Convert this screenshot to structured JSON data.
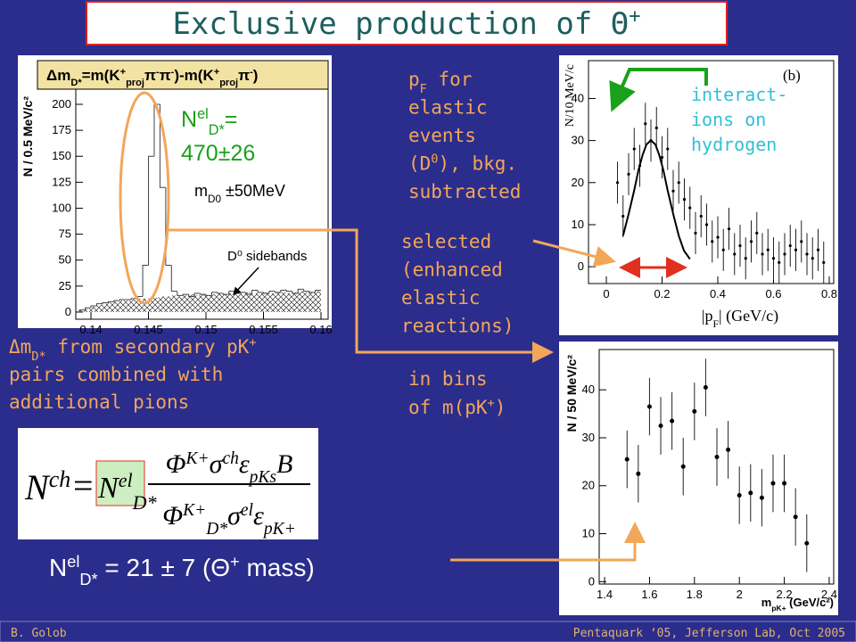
{
  "title": [
    [
      {
        "t": "Exclusive production of "
      },
      {
        "t": "Θ"
      },
      {
        "t": "+",
        "s": "sup"
      }
    ]
  ],
  "footer": {
    "author": "B. Golob",
    "event": "Pentaquark ‘05, Jefferson Lab, Oct 2005"
  },
  "annotations": {
    "pf_note": [
      [
        {
          "t": "p"
        },
        {
          "t": "F",
          "s": "sub"
        },
        {
          "t": " for"
        }
      ],
      [
        {
          "t": "elastic"
        }
      ],
      [
        {
          "t": "events"
        }
      ],
      [
        {
          "t": "(D"
        },
        {
          "t": "0",
          "s": "sup"
        },
        {
          "t": "), bkg."
        }
      ],
      [
        {
          "t": "subtracted"
        }
      ]
    ],
    "selected_note": [
      [
        {
          "t": "selected"
        }
      ],
      [
        {
          "t": "(enhanced"
        }
      ],
      [
        {
          "t": "elastic"
        }
      ],
      [
        {
          "t": "reactions)"
        }
      ]
    ],
    "bins_note": [
      [
        {
          "t": "in bins"
        }
      ],
      [
        {
          "t": "of m(pK"
        },
        {
          "t": "+",
          "s": "sup"
        },
        {
          "t": ")"
        }
      ]
    ],
    "dm_note": [
      [
        {
          "t": "Δm"
        },
        {
          "t": "D*",
          "s": "sub"
        },
        {
          "t": " from secondary pK"
        },
        {
          "t": "+",
          "s": "sup"
        }
      ],
      [
        {
          "t": "pairs combined with"
        }
      ],
      [
        {
          "t": "additional pions"
        }
      ]
    ],
    "hydrogen_note": [
      [
        {
          "t": "interact-"
        }
      ],
      [
        {
          "t": "ions on"
        }
      ],
      [
        {
          "t": "hydrogen"
        }
      ]
    ],
    "nel_fit": [
      [
        {
          "t": "N"
        },
        {
          "t": "el",
          "s": "sup"
        },
        {
          "t": "D*",
          "s": "sub"
        },
        {
          "t": "="
        }
      ],
      [
        {
          "t": "470±26"
        }
      ]
    ],
    "nel_result": [
      [
        {
          "t": "N"
        },
        {
          "t": "el",
          "s": "sup"
        },
        {
          "t": "D*",
          "s": "sub"
        },
        {
          "t": " = 21 ± 7 ("
        },
        {
          "t": "Θ"
        },
        {
          "t": "+",
          "s": "sup"
        },
        {
          "t": " mass)"
        }
      ]
    ]
  },
  "formula": {
    "lhs": [
      [
        {
          "t": "N"
        },
        {
          "t": "ch",
          "s": "sup"
        }
      ]
    ],
    "eq": "=",
    "factor": [
      [
        {
          "t": "N"
        },
        {
          "t": "el",
          "s": "sup"
        },
        {
          "t": "D*",
          "s": "sub"
        }
      ]
    ],
    "numerator": [
      [
        {
          "t": "Φ"
        },
        {
          "t": "K+",
          "s": "sup"
        },
        {
          "t": "σ"
        },
        {
          "t": "ch",
          "s": "sup"
        },
        {
          "t": "ε"
        },
        {
          "t": "pKs",
          "s": "sub"
        },
        {
          "t": "B"
        }
      ]
    ],
    "denominator": [
      [
        {
          "t": "Φ"
        },
        {
          "t": "K+",
          "s": "sup"
        },
        {
          "t": "D*",
          "s": "sub"
        },
        {
          "t": "σ"
        },
        {
          "t": "el",
          "s": "sup"
        },
        {
          "t": "ε"
        },
        {
          "t": "pK+",
          "s": "sub"
        }
      ]
    ]
  },
  "chart_data": [
    {
      "type": "histogram",
      "title": [
        [
          {
            "t": "Δm"
          },
          {
            "t": "D*",
            "s": "sub"
          },
          {
            "t": "=m(K"
          },
          {
            "t": "+",
            "s": "sup"
          },
          {
            "t": "proj",
            "s": "sub"
          },
          {
            "t": "π"
          },
          {
            "t": "-",
            "s": "sup"
          },
          {
            "t": "π"
          },
          {
            "t": "-",
            "s": "sup"
          },
          {
            "t": ")-m(K"
          },
          {
            "t": "+",
            "s": "sup"
          },
          {
            "t": "proj",
            "s": "sub"
          },
          {
            "t": "π"
          },
          {
            "t": "-",
            "s": "sup"
          },
          {
            "t": ")"
          }
        ]
      ],
      "ylabel": "N / 0.5 MeV/c²",
      "annotation": [
        [
          {
            "t": "m"
          },
          {
            "t": "D0",
            "s": "sub"
          },
          {
            "t": " ±50MeV"
          }
        ]
      ],
      "xlim": [
        0.13868,
        0.16062
      ],
      "ylim": [
        -6.9,
        214.6
      ],
      "xticks": [
        0.14,
        0.145,
        0.15,
        0.155,
        0.16
      ],
      "yticks": [
        0,
        25,
        50,
        75,
        100,
        125,
        150,
        175,
        200
      ],
      "bins": [
        0.139,
        0.1395,
        0.14,
        0.1405,
        0.141,
        0.1415,
        0.142,
        0.1425,
        0.143,
        0.1435,
        0.144,
        0.1445,
        0.145,
        0.1455,
        0.146,
        0.1465,
        0.147,
        0.1475,
        0.148,
        0.1485,
        0.149,
        0.1495,
        0.15,
        0.1505,
        0.151,
        0.1515,
        0.152,
        0.1525,
        0.153,
        0.1535,
        0.154,
        0.1545,
        0.155,
        0.1555,
        0.156,
        0.1565,
        0.157,
        0.1575,
        0.158,
        0.1585,
        0.159,
        0.1595,
        0.16
      ],
      "values": [
        2,
        4,
        6,
        8,
        9,
        10,
        11,
        12,
        12,
        13,
        15,
        45,
        150,
        200,
        120,
        45,
        20,
        16,
        17,
        15,
        18,
        17,
        16,
        19,
        18,
        17,
        20,
        18,
        19,
        17,
        21,
        19,
        18,
        20,
        19,
        21,
        20,
        18,
        22,
        20,
        19,
        21
      ],
      "sidebands": {
        "name": "D⁰ sidebands",
        "values": [
          2,
          3,
          5,
          7,
          8,
          9,
          10,
          11,
          11,
          12,
          13,
          13,
          14,
          14,
          15,
          15,
          16,
          15,
          16,
          17,
          16,
          17,
          16,
          17,
          18,
          17,
          18,
          17,
          18,
          19,
          18,
          18,
          19,
          18,
          19,
          19,
          18,
          19,
          20,
          19,
          19,
          20
        ]
      }
    },
    {
      "type": "scatter",
      "label": "(b)",
      "ylabel": "N/10 MeV/c",
      "xlabel": [
        [
          {
            "t": "|p"
          },
          {
            "t": "F",
            "s": "sub"
          },
          {
            "t": "|  (GeV/c)"
          }
        ]
      ],
      "xlim": [
        -0.064,
        0.816
      ],
      "ylim": [
        -4,
        49
      ],
      "xticks": [
        0,
        0.2,
        0.4,
        0.6,
        0.8
      ],
      "yticks": [
        0,
        10,
        20,
        30,
        40
      ],
      "x": [
        0.04,
        0.06,
        0.08,
        0.1,
        0.12,
        0.14,
        0.16,
        0.18,
        0.2,
        0.22,
        0.24,
        0.26,
        0.28,
        0.3,
        0.32,
        0.34,
        0.36,
        0.38,
        0.4,
        0.42,
        0.44,
        0.46,
        0.48,
        0.5,
        0.52,
        0.54,
        0.56,
        0.58,
        0.6,
        0.62,
        0.64,
        0.66,
        0.68,
        0.7,
        0.72,
        0.74,
        0.76,
        0.78
      ],
      "values": [
        20,
        12,
        22,
        28,
        24,
        34,
        30,
        33,
        26,
        28,
        18,
        20,
        16,
        14,
        8,
        12,
        10,
        6,
        7,
        4,
        9,
        3,
        5,
        2,
        6,
        8,
        3,
        4,
        2,
        1,
        3,
        5,
        4,
        6,
        3,
        2,
        4,
        1
      ],
      "error": 5
    },
    {
      "type": "scatter",
      "ylabel": "N / 50 MeV/c²",
      "xlabel": [
        [
          {
            "t": "m"
          },
          {
            "t": "pK+",
            "s": "sub"
          },
          {
            "t": " (GeV/c²)"
          }
        ]
      ],
      "xlim": [
        1.376,
        2.42
      ],
      "ylim": [
        -0.5,
        48.4
      ],
      "xticks": [
        1.4,
        1.6,
        1.8,
        2,
        2.2,
        2.4
      ],
      "yticks": [
        0,
        10,
        20,
        30,
        40
      ],
      "x": [
        1.5,
        1.55,
        1.6,
        1.65,
        1.7,
        1.75,
        1.8,
        1.85,
        1.9,
        1.95,
        2.0,
        2.05,
        2.1,
        2.15,
        2.2,
        2.25,
        2.3
      ],
      "values": [
        25.5,
        22.5,
        36.5,
        32.5,
        33.5,
        24,
        35.5,
        40.5,
        26,
        27.5,
        18,
        18.5,
        17.5,
        20.5,
        20.5,
        13.5,
        8
      ],
      "error": 6
    }
  ]
}
